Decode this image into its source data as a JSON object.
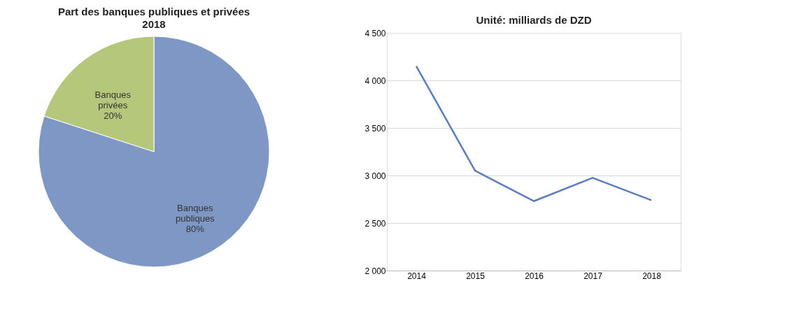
{
  "chart_data": [
    {
      "type": "pie",
      "title": "Part des banques publiques et privées",
      "subtitle": "2018",
      "categories": [
        "Banques publiques",
        "Banques privées"
      ],
      "values": [
        80,
        20
      ],
      "colors": [
        "#7f97c5",
        "#b5c77a"
      ],
      "value_labels": [
        "80%",
        "20%"
      ]
    },
    {
      "type": "line",
      "title": "Unité: milliards de DZD",
      "categories": [
        "2014",
        "2015",
        "2016",
        "2017",
        "2018"
      ],
      "series": [
        {
          "color": "#5b7dbf",
          "values": [
            4150,
            3050,
            2730,
            2975,
            2740
          ]
        }
      ],
      "ylim": [
        2000,
        4500
      ],
      "yticks": [
        {
          "value": 2000,
          "label": "2 000"
        },
        {
          "value": 2500,
          "label": "2 500"
        },
        {
          "value": 3000,
          "label": "3 000"
        },
        {
          "value": 3500,
          "label": "3 500"
        },
        {
          "value": 4000,
          "label": "4 000"
        },
        {
          "value": 4500,
          "label": "4 500"
        }
      ],
      "grid": "y",
      "marker": "none",
      "line_style": "solid"
    }
  ]
}
